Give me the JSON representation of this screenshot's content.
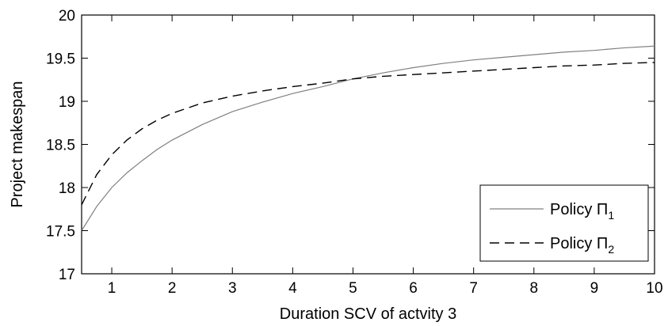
{
  "chart_data": {
    "type": "line",
    "title": "",
    "xlabel": "Duration SCV of actvity 3",
    "ylabel": "Project makespan",
    "xlim": [
      0.5,
      10
    ],
    "ylim": [
      17,
      20
    ],
    "xticks": [
      1,
      2,
      3,
      4,
      5,
      6,
      7,
      8,
      9,
      10
    ],
    "yticks": [
      17,
      17.5,
      18,
      18.5,
      19,
      19.5,
      20
    ],
    "xtick_labels": [
      "1",
      "2",
      "3",
      "4",
      "5",
      "6",
      "7",
      "8",
      "9",
      "10"
    ],
    "ytick_labels": [
      "17",
      "17.5",
      "18",
      "18.5",
      "19",
      "19.5",
      "20"
    ],
    "grid": false,
    "legend_position": "bottom-right",
    "series": [
      {
        "name": "Policy Π1",
        "legend_prefix": "Policy Π",
        "legend_sub": "1",
        "style": "solid",
        "color": "#808080",
        "x": [
          0.5,
          0.75,
          1,
          1.25,
          1.5,
          1.75,
          2,
          2.5,
          3,
          3.5,
          4,
          4.5,
          5,
          5.5,
          6,
          6.5,
          7,
          7.5,
          8,
          8.5,
          9,
          9.5,
          10
        ],
        "y": [
          17.5,
          17.78,
          18.0,
          18.17,
          18.31,
          18.44,
          18.55,
          18.73,
          18.88,
          18.99,
          19.09,
          19.17,
          19.26,
          19.33,
          19.39,
          19.44,
          19.48,
          19.51,
          19.54,
          19.57,
          19.59,
          19.62,
          19.64
        ]
      },
      {
        "name": "Policy Π2",
        "legend_prefix": "Policy Π",
        "legend_sub": "2",
        "style": "dashed",
        "color": "#000000",
        "x": [
          0.5,
          0.75,
          1,
          1.25,
          1.5,
          1.75,
          2,
          2.5,
          3,
          3.5,
          4,
          4.5,
          5,
          5.5,
          6,
          6.5,
          7,
          7.5,
          8,
          8.5,
          9,
          9.5,
          10
        ],
        "y": [
          17.8,
          18.15,
          18.38,
          18.55,
          18.68,
          18.78,
          18.86,
          18.98,
          19.06,
          19.12,
          19.17,
          19.21,
          19.26,
          19.29,
          19.31,
          19.33,
          19.35,
          19.37,
          19.39,
          19.41,
          19.42,
          19.44,
          19.45
        ]
      }
    ]
  }
}
